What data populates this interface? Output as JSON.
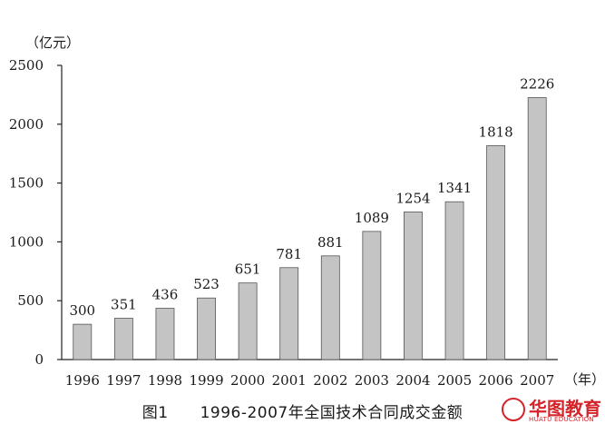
{
  "chart_data": {
    "type": "bar",
    "categories": [
      "1996",
      "1997",
      "1998",
      "1999",
      "2000",
      "2001",
      "2002",
      "2003",
      "2004",
      "2005",
      "2006",
      "2007"
    ],
    "values": [
      300,
      351,
      436,
      523,
      651,
      781,
      881,
      1089,
      1254,
      1341,
      1818,
      2226
    ],
    "data_labels": [
      "300",
      "351",
      "436",
      "523",
      "651",
      "781",
      "881",
      "1089",
      "1254",
      "1341",
      "1818",
      "2226"
    ],
    "y_unit_label": "（亿元）",
    "x_unit_label": "（年）",
    "yticks": [
      "0",
      "500",
      "1000",
      "1500",
      "2000",
      "2500"
    ],
    "ylim": [
      0,
      2500
    ],
    "grid": false,
    "legend": "none",
    "caption": "图1　　1996-2007年全国技术合同成交金额",
    "colors": {
      "bar": "#c4c4c4",
      "bar_edge": "#555555"
    }
  },
  "watermark": {
    "text": "华图教育",
    "sub": "HUATU EDUCATION",
    "color": "#d4242a"
  }
}
